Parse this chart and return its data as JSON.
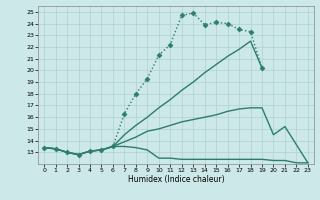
{
  "xlabel": "Humidex (Indice chaleur)",
  "background_color": "#cce8e8",
  "grid_color": "#b0d0d0",
  "line_color": "#2d7d6e",
  "xlim": [
    -0.5,
    23.5
  ],
  "ylim": [
    12,
    25.5
  ],
  "yticks": [
    13,
    14,
    15,
    16,
    17,
    18,
    19,
    20,
    21,
    22,
    23,
    24,
    25
  ],
  "xticks": [
    0,
    1,
    2,
    3,
    4,
    5,
    6,
    7,
    8,
    9,
    10,
    11,
    12,
    13,
    14,
    15,
    16,
    17,
    18,
    19,
    20,
    21,
    22,
    23
  ],
  "series": [
    {
      "x": [
        0,
        1,
        2,
        3,
        4,
        5,
        6,
        7,
        8,
        9,
        10,
        11,
        12,
        13,
        14,
        15,
        16,
        17,
        18,
        19
      ],
      "y": [
        13.4,
        13.3,
        13.0,
        12.8,
        13.1,
        13.2,
        13.5,
        16.3,
        18.0,
        19.3,
        21.3,
        22.2,
        24.7,
        24.9,
        23.9,
        24.1,
        24.0,
        23.5,
        23.3,
        20.2
      ],
      "marker": "D",
      "markersize": 2.5,
      "linewidth": 1.0,
      "linestyle": ":"
    },
    {
      "x": [
        0,
        1,
        2,
        3,
        4,
        5,
        6,
        7,
        8,
        9,
        10,
        11,
        12,
        13,
        14,
        15,
        16,
        17,
        18,
        19
      ],
      "y": [
        13.4,
        13.3,
        13.0,
        12.8,
        13.1,
        13.2,
        13.5,
        14.5,
        15.3,
        16.0,
        16.8,
        17.5,
        18.3,
        19.0,
        19.8,
        20.5,
        21.2,
        21.8,
        22.5,
        20.2
      ],
      "marker": null,
      "markersize": 0,
      "linewidth": 1.0,
      "linestyle": "-"
    },
    {
      "x": [
        0,
        1,
        2,
        3,
        4,
        5,
        6,
        7,
        8,
        9,
        10,
        11,
        12,
        13,
        14,
        15,
        16,
        17,
        18,
        19,
        20,
        21,
        23
      ],
      "y": [
        13.4,
        13.3,
        13.0,
        12.8,
        13.1,
        13.2,
        13.5,
        13.9,
        14.3,
        14.8,
        15.0,
        15.3,
        15.6,
        15.8,
        16.0,
        16.2,
        16.5,
        16.7,
        16.8,
        16.8,
        14.5,
        15.2,
        12.1
      ],
      "marker": null,
      "markersize": 0,
      "linewidth": 1.0,
      "linestyle": "-"
    },
    {
      "x": [
        0,
        1,
        2,
        3,
        4,
        5,
        6,
        7,
        8,
        9,
        10,
        11,
        12,
        13,
        14,
        15,
        16,
        17,
        18,
        19,
        20,
        21,
        22,
        23
      ],
      "y": [
        13.4,
        13.3,
        13.0,
        12.8,
        13.1,
        13.2,
        13.5,
        13.5,
        13.4,
        13.2,
        12.5,
        12.5,
        12.4,
        12.4,
        12.4,
        12.4,
        12.4,
        12.4,
        12.4,
        12.4,
        12.3,
        12.3,
        12.1,
        12.1
      ],
      "marker": null,
      "markersize": 0,
      "linewidth": 1.0,
      "linestyle": "-"
    }
  ]
}
